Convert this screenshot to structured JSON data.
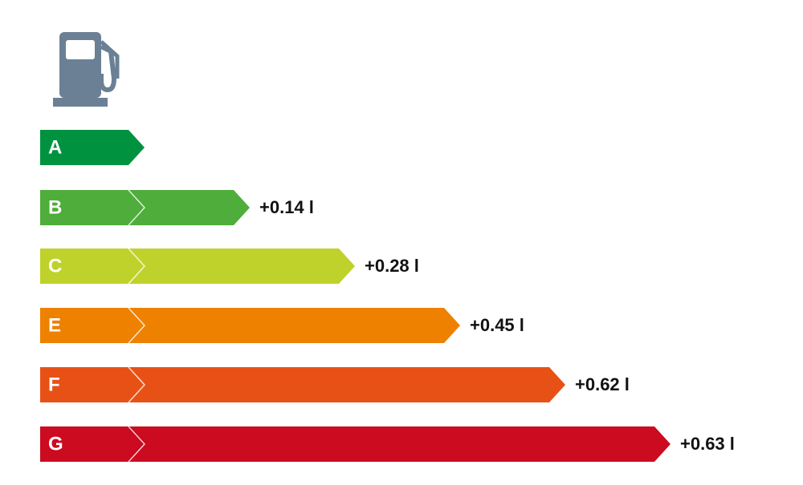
{
  "grades": [
    {
      "letter": "A"
    },
    {
      "letter": "B",
      "extra": "+0.14 l"
    },
    {
      "letter": "C",
      "extra": "+0.28 l"
    },
    {
      "letter": "E",
      "extra": "+0.45 l"
    },
    {
      "letter": "F",
      "extra": "+0.62 l"
    },
    {
      "letter": "G",
      "extra": "+0.63 l"
    }
  ]
}
